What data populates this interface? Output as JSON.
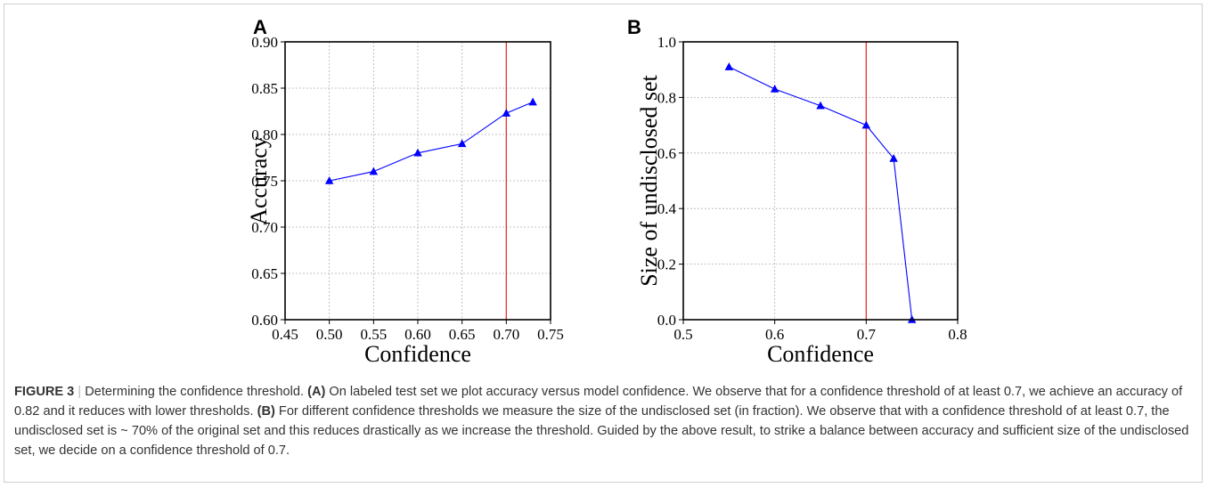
{
  "chart_data": [
    {
      "panel_label": "A",
      "type": "line",
      "x": [
        0.5,
        0.55,
        0.6,
        0.65,
        0.7,
        0.73
      ],
      "y": [
        0.75,
        0.76,
        0.78,
        0.79,
        0.823,
        0.835
      ],
      "xlabel": "Confidence",
      "ylabel": "Accuracy",
      "xlim": [
        0.45,
        0.75
      ],
      "ylim": [
        0.6,
        0.9
      ],
      "xticks": [
        "0.45",
        "0.50",
        "0.55",
        "0.60",
        "0.65",
        "0.70",
        "0.75"
      ],
      "yticks": [
        "0.60",
        "0.65",
        "0.70",
        "0.75",
        "0.80",
        "0.85",
        "0.90"
      ],
      "xtick_values": [
        0.45,
        0.5,
        0.55,
        0.6,
        0.65,
        0.7,
        0.75
      ],
      "ytick_values": [
        0.6,
        0.65,
        0.7,
        0.75,
        0.8,
        0.85,
        0.9
      ],
      "grid": true,
      "marker": "triangle",
      "line_color": "#0000ff",
      "threshold_x": 0.7,
      "threshold_color": "#e8322c"
    },
    {
      "panel_label": "B",
      "type": "line",
      "x": [
        0.55,
        0.6,
        0.65,
        0.7,
        0.73,
        0.75
      ],
      "y": [
        0.91,
        0.83,
        0.77,
        0.7,
        0.58,
        0.0
      ],
      "xlabel": "Confidence",
      "ylabel": "Size of undisclosed set",
      "xlim": [
        0.5,
        0.8
      ],
      "ylim": [
        0.0,
        1.0
      ],
      "xticks": [
        "0.5",
        "0.6",
        "0.7",
        "0.8"
      ],
      "yticks": [
        "0.0",
        "0.2",
        "0.4",
        "0.6",
        "0.8",
        "1.0"
      ],
      "xtick_values": [
        0.5,
        0.6,
        0.7,
        0.8
      ],
      "ytick_values": [
        0.0,
        0.2,
        0.4,
        0.6,
        0.8,
        1.0
      ],
      "grid": true,
      "marker": "triangle",
      "line_color": "#0000ff",
      "threshold_x": 0.7,
      "threshold_color": "#e8322c"
    }
  ],
  "caption": {
    "figure_label": "FIGURE 3",
    "separator": "|",
    "title": " Determining the confidence threshold. ",
    "part_a_label": "(A)",
    "part_a_text": " On labeled test set we plot accuracy versus model confidence. We observe that for a confidence threshold of at least 0.7, we achieve an accuracy of 0.82 and it reduces with lower thresholds. ",
    "part_b_label": "(B)",
    "part_b_text": " For different confidence thresholds we measure the size of the undisclosed set (in fraction). We observe that with a confidence threshold of at least 0.7, the undisclosed set is ~ 70% of the original set and this reduces drastically as we increase the threshold. Guided by the above result, to strike a balance between accuracy and sufficient size of the undisclosed set, we decide on a confidence threshold of 0.7."
  }
}
